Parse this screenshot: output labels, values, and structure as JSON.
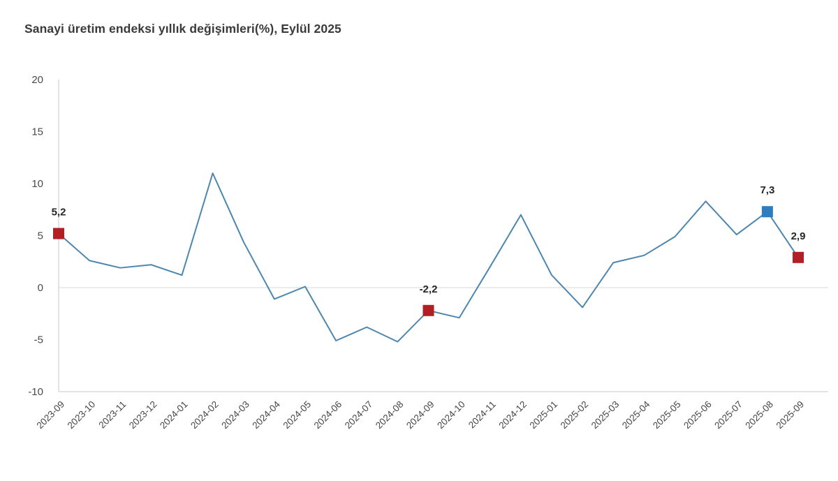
{
  "title": "Sanayi üretim endeksi yıllık değişimleri(%), Eylül 2025",
  "colors": {
    "line": "#4d86ae",
    "marker_red": "#b11e24",
    "marker_blue": "#2e7dbe",
    "axis_line": "#d4d4d4",
    "zero_line": "#e0e0e0",
    "y_tick_text": "#4a4a4a",
    "x_tick_text": "#454545",
    "point_label_text": "#262626",
    "title_text": "#3a3a3a",
    "background": "#ffffff"
  },
  "chart_data": {
    "type": "line",
    "title": "Sanayi üretim endeksi yıllık değişimleri(%), Eylül 2025",
    "xlabel": "",
    "ylabel": "",
    "ylim": [
      -10,
      20
    ],
    "yticks": [
      20,
      15,
      10,
      5,
      0,
      -5,
      -10
    ],
    "grid": "zero-line-only",
    "legend": "none",
    "x_label_rotation": -45,
    "categories": [
      "2023-09",
      "2023-10",
      "2023-11",
      "2023-12",
      "2024-01",
      "2024-02",
      "2024-03",
      "2024-04",
      "2024-05",
      "2024-06",
      "2024-07",
      "2024-08",
      "2024-09",
      "2024-10",
      "2024-11",
      "2024-12",
      "2025-01",
      "2025-02",
      "2025-03",
      "2025-04",
      "2025-05",
      "2025-06",
      "2025-07",
      "2025-08",
      "2025-09"
    ],
    "values": [
      5.2,
      2.6,
      1.9,
      2.2,
      1.2,
      11.0,
      4.4,
      -1.1,
      0.1,
      -5.1,
      -3.8,
      -5.2,
      -2.2,
      -2.9,
      2.0,
      7.0,
      1.2,
      -1.9,
      2.4,
      3.1,
      4.9,
      8.3,
      5.1,
      7.3,
      2.9
    ],
    "marked_points": [
      {
        "index": 0,
        "category": "2023-09",
        "value": 5.2,
        "label": "5,2",
        "color": "red"
      },
      {
        "index": 12,
        "category": "2024-09",
        "value": -2.2,
        "label": "-2,2",
        "color": "red"
      },
      {
        "index": 23,
        "category": "2025-08",
        "value": 7.3,
        "label": "7,3",
        "color": "blue"
      },
      {
        "index": 24,
        "category": "2025-09",
        "value": 2.9,
        "label": "2,9",
        "color": "red"
      }
    ]
  }
}
